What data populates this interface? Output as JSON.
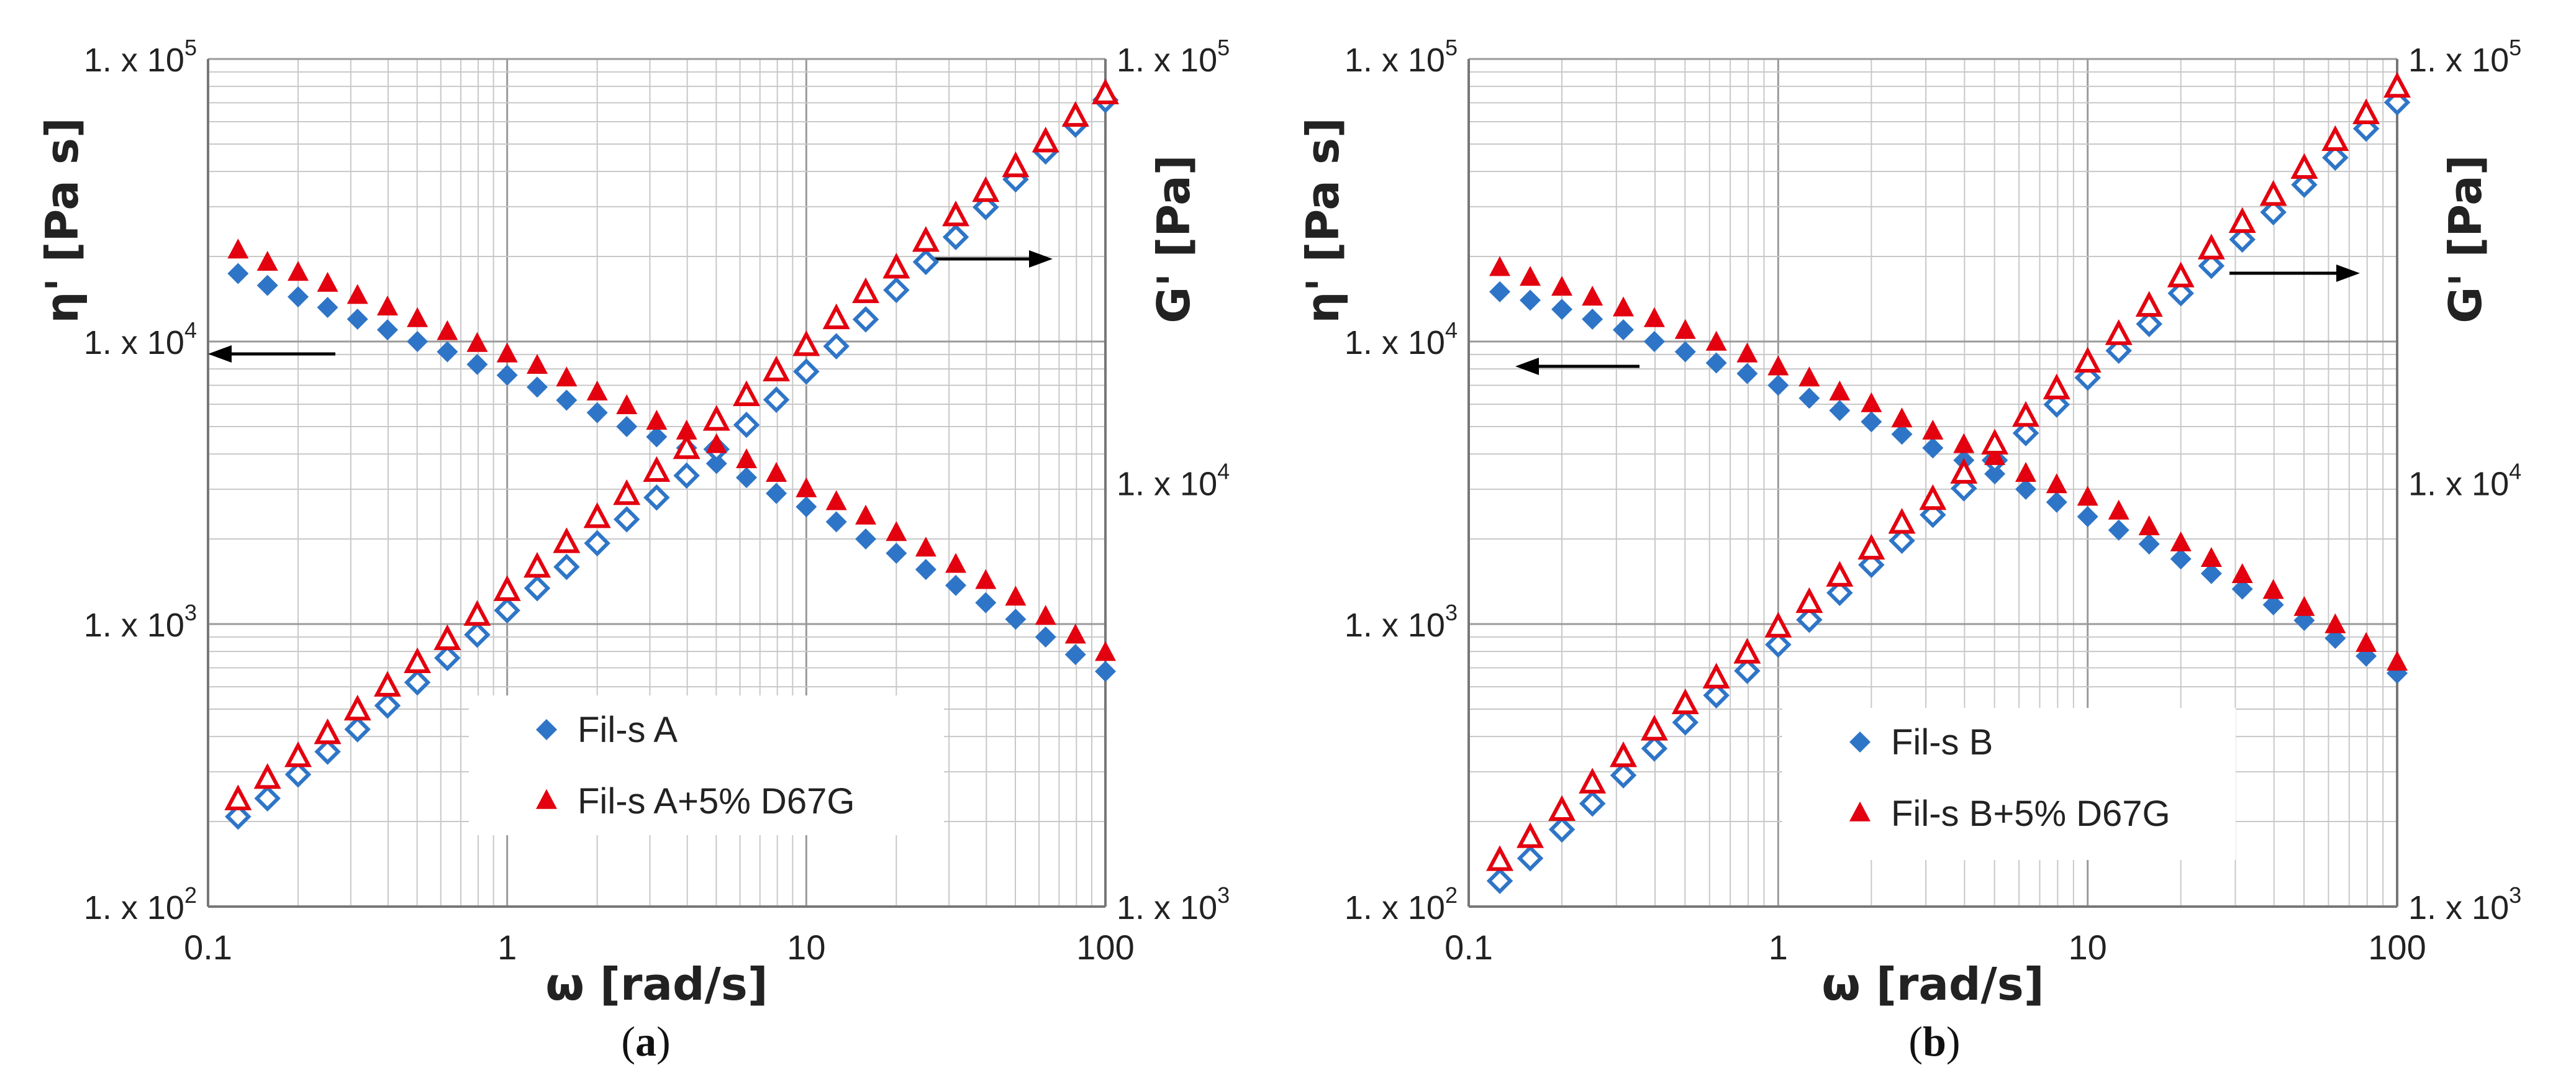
{
  "figure": {
    "captions": [
      "(a)",
      "(b)"
    ]
  },
  "chart_data": [
    {
      "type": "scatter",
      "panel_label": "(a)",
      "x_scale": "log",
      "xlabel": "ω [rad/s]",
      "xlim": [
        0.1,
        100
      ],
      "x_ticks": [
        "0.1",
        "1",
        "10",
        "100"
      ],
      "ylabel_left": "η' [Pa s]",
      "ylim_left": [
        100,
        100000
      ],
      "y_ticks_left": [
        {
          "base": "1. x 10",
          "exp": "2"
        },
        {
          "base": "1. x 10",
          "exp": "3"
        },
        {
          "base": "1. x 10",
          "exp": "4"
        },
        {
          "base": "1. x 10",
          "exp": "5"
        }
      ],
      "ylabel_right": "G' [Pa]",
      "ylim_right": [
        1000,
        100000
      ],
      "y_ticks_right": [
        {
          "base": "1. x 10",
          "exp": "3"
        },
        {
          "base": "1. x 10",
          "exp": "4"
        },
        {
          "base": "1. x 10",
          "exp": "5"
        }
      ],
      "grid": true,
      "legend": {
        "position": "bottom-center",
        "entries": [
          "Fil-s A",
          "Fil-s A+5% D67G"
        ]
      },
      "arrows": [
        {
          "direction": "left",
          "axis": "left",
          "points_to": "η' [Pa s]"
        },
        {
          "direction": "right",
          "axis": "right",
          "points_to": "G' [Pa]"
        }
      ],
      "omega": [
        0.126,
        0.158,
        0.2,
        0.251,
        0.316,
        0.398,
        0.501,
        0.631,
        0.794,
        1,
        1.26,
        1.58,
        2,
        2.51,
        3.16,
        3.98,
        5.01,
        6.31,
        7.94,
        10,
        12.6,
        15.8,
        20,
        25.1,
        31.6,
        39.8,
        50.1,
        63.1,
        79.4,
        100
      ],
      "series": [
        {
          "name": "Fil-s A",
          "quantity": "η'",
          "axis": "left",
          "marker": "diamond-filled",
          "color": "#2E75C7",
          "values": [
            17400,
            15800,
            14400,
            13200,
            12000,
            11000,
            10000,
            9200,
            8300,
            7600,
            6900,
            6200,
            5600,
            5000,
            4600,
            4200,
            3700,
            3300,
            2900,
            2600,
            2300,
            2000,
            1780,
            1560,
            1370,
            1190,
            1040,
            900,
            780,
            680
          ]
        },
        {
          "name": "Fil-s A",
          "quantity": "G'",
          "axis": "right",
          "marker": "diamond-open",
          "color": "#2E75C7",
          "values": [
            1630,
            1800,
            2050,
            2320,
            2620,
            2980,
            3380,
            3860,
            4380,
            5000,
            5640,
            6330,
            7200,
            8200,
            9230,
            10400,
            12000,
            13700,
            15700,
            18300,
            21000,
            24300,
            28500,
            33200,
            38000,
            44700,
            52000,
            60500,
            70000,
            80000
          ]
        },
        {
          "name": "Fil-s A+5% D67G",
          "quantity": "η'",
          "axis": "left",
          "marker": "triangle-filled",
          "color": "#E3000F",
          "values": [
            21000,
            19000,
            17500,
            16000,
            14500,
            13200,
            12000,
            10800,
            9800,
            9000,
            8200,
            7400,
            6600,
            5900,
            5200,
            4800,
            4300,
            3800,
            3400,
            3000,
            2700,
            2400,
            2100,
            1850,
            1620,
            1420,
            1240,
            1060,
            910,
            790
          ]
        },
        {
          "name": "Fil-s A+5% D67G",
          "quantity": "G'",
          "axis": "right",
          "marker": "triangle-open",
          "color": "#E3000F",
          "values": [
            1780,
            2000,
            2250,
            2550,
            2900,
            3300,
            3750,
            4250,
            4850,
            5550,
            6300,
            7200,
            8250,
            9350,
            10600,
            12000,
            14000,
            16000,
            18300,
            21000,
            24300,
            28000,
            32000,
            37000,
            42500,
            48500,
            55500,
            63500,
            73000,
            82500
          ]
        }
      ]
    },
    {
      "type": "scatter",
      "panel_label": "(b)",
      "x_scale": "log",
      "xlabel": "ω [rad/s]",
      "xlim": [
        0.1,
        100
      ],
      "x_ticks": [
        "0.1",
        "1",
        "10",
        "100"
      ],
      "ylabel_left": "η' [Pa s]",
      "ylim_left": [
        100,
        100000
      ],
      "y_ticks_left": [
        {
          "base": "1. x 10",
          "exp": "2"
        },
        {
          "base": "1. x 10",
          "exp": "3"
        },
        {
          "base": "1. x 10",
          "exp": "4"
        },
        {
          "base": "1. x 10",
          "exp": "5"
        }
      ],
      "ylabel_right": "G' [Pa]",
      "ylim_right": [
        1000,
        100000
      ],
      "y_ticks_right": [
        {
          "base": "1. x 10",
          "exp": "3"
        },
        {
          "base": "1. x 10",
          "exp": "4"
        },
        {
          "base": "1. x 10",
          "exp": "5"
        }
      ],
      "grid": true,
      "legend": {
        "position": "bottom-center",
        "entries": [
          "Fil-s B",
          "Fil-s B+5% D67G"
        ]
      },
      "arrows": [
        {
          "direction": "left",
          "axis": "left",
          "points_to": "η' [Pa s]"
        },
        {
          "direction": "right",
          "axis": "right",
          "points_to": "G' [Pa]"
        }
      ],
      "omega": [
        0.126,
        0.158,
        0.2,
        0.251,
        0.316,
        0.398,
        0.501,
        0.631,
        0.794,
        1,
        1.26,
        1.58,
        2,
        2.51,
        3.16,
        3.98,
        5.01,
        6.31,
        7.94,
        10,
        12.6,
        15.8,
        20,
        25.1,
        31.6,
        39.8,
        50.1,
        63.1,
        79.4,
        100
      ],
      "series": [
        {
          "name": "Fil-s B",
          "quantity": "η'",
          "axis": "left",
          "marker": "diamond-filled",
          "color": "#2E75C7",
          "values": [
            15000,
            14000,
            13000,
            12000,
            11000,
            10000,
            9200,
            8400,
            7700,
            7000,
            6300,
            5700,
            5200,
            4700,
            4200,
            3800,
            3400,
            3000,
            2700,
            2400,
            2150,
            1920,
            1700,
            1510,
            1330,
            1170,
            1030,
            890,
            770,
            670
          ]
        },
        {
          "name": "Fil-s B",
          "quantity": "G'",
          "axis": "right",
          "marker": "diamond-open",
          "color": "#2E75C7",
          "values": [
            1150,
            1300,
            1520,
            1750,
            2040,
            2360,
            2720,
            3150,
            3600,
            4150,
            4750,
            5500,
            6400,
            7300,
            8400,
            9700,
            11300,
            13100,
            15300,
            17700,
            20500,
            23700,
            28000,
            32500,
            37500,
            43500,
            50500,
            58500,
            68500,
            79000
          ]
        },
        {
          "name": "Fil-s B+5% D67G",
          "quantity": "η'",
          "axis": "left",
          "marker": "triangle-filled",
          "color": "#E3000F",
          "values": [
            18200,
            16800,
            15500,
            14300,
            13100,
            12000,
            10900,
            9900,
            9000,
            8100,
            7400,
            6600,
            6000,
            5300,
            4800,
            4300,
            3900,
            3400,
            3100,
            2800,
            2500,
            2200,
            1930,
            1700,
            1490,
            1310,
            1140,
            990,
            850,
            730
          ]
        },
        {
          "name": "Fil-s B+5% D67G",
          "quantity": "G'",
          "axis": "right",
          "marker": "triangle-open",
          "color": "#E3000F",
          "values": [
            1280,
            1450,
            1680,
            1950,
            2250,
            2600,
            3000,
            3450,
            3950,
            4550,
            5200,
            6000,
            6950,
            8000,
            9100,
            10500,
            12300,
            14300,
            16600,
            19200,
            22300,
            26000,
            30500,
            35500,
            41000,
            47500,
            55000,
            64000,
            74000,
            85500
          ]
        }
      ]
    }
  ]
}
